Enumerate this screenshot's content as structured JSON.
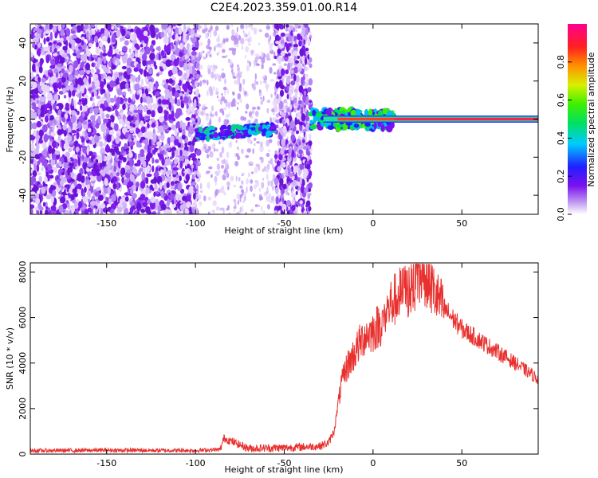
{
  "title": "C2E4.2023.359.01.00.R14",
  "chart_data": [
    {
      "type": "heatmap",
      "xlabel": "Height of straight line (km)",
      "ylabel": "Frequency (Hz)",
      "xlim": [
        -193,
        93
      ],
      "ylim": [
        -50,
        50
      ],
      "xticks": [
        -150,
        -100,
        -50,
        0,
        50
      ],
      "xtick_labels": [
        "-150",
        "-100",
        "-50",
        "0",
        "50"
      ],
      "yticks": [
        -40,
        -20,
        0,
        20,
        40
      ],
      "ytick_labels": [
        "-40",
        "-20",
        "0",
        "20",
        "40"
      ],
      "colorbar": {
        "label": "Normalized spectral amplitude",
        "range": [
          0,
          1
        ],
        "ticks": [
          0.0,
          0.2,
          0.4,
          0.6,
          0.8
        ],
        "tick_labels": [
          "0.0",
          "0.2",
          "0.4",
          "0.6",
          "0.8"
        ]
      },
      "features": [
        {
          "x_range": [
            -193,
            -100
          ],
          "freq_range": [
            -50,
            50
          ],
          "amplitude": 0.1
        },
        {
          "x_range": [
            -100,
            -55
          ],
          "freq_center": -8,
          "amplitude": 0.25
        },
        {
          "x_range": [
            -35,
            93
          ],
          "freq_center": 0,
          "amplitude": 0.9
        }
      ]
    },
    {
      "type": "line",
      "xlabel": "Height of straight line (km)",
      "ylabel": "SNR (10 * v/v)",
      "xlim": [
        -193,
        93
      ],
      "ylim": [
        0,
        8400
      ],
      "xticks": [
        -150,
        -100,
        -50,
        0,
        50
      ],
      "xtick_labels": [
        "-150",
        "-100",
        "-50",
        "0",
        "50"
      ],
      "yticks": [
        0,
        2000,
        4000,
        6000,
        8000
      ],
      "ytick_labels": [
        "0",
        "2000",
        "4000",
        "6000",
        "8000"
      ],
      "color": "#e8302e",
      "x": [
        -193,
        -150,
        -100,
        -86,
        -84,
        -70,
        -50,
        -30,
        -25,
        -22,
        -20,
        -18,
        -15,
        -10,
        -5,
        0,
        5,
        10,
        15,
        20,
        25,
        28,
        30,
        35,
        40,
        50,
        60,
        70,
        80,
        93
      ],
      "y": [
        150,
        170,
        160,
        200,
        700,
        250,
        280,
        350,
        500,
        1000,
        2000,
        3000,
        3800,
        4500,
        5200,
        5400,
        5800,
        6600,
        7000,
        7200,
        7600,
        7900,
        7800,
        7000,
        6400,
        5500,
        5000,
        4500,
        4000,
        3300
      ]
    }
  ]
}
